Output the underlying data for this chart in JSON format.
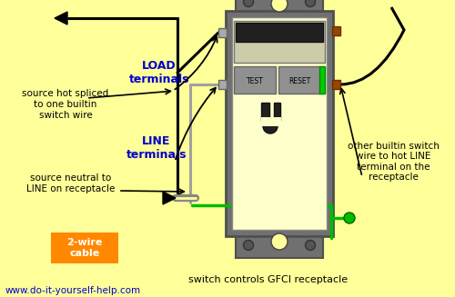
{
  "bg_color": "#FFFF99",
  "website": "www.do-it-yourself-help.com",
  "outlet_body_color": "#FFFFCC",
  "outlet_frame_color": "#707070",
  "outlet_frame_dark": "#505050",
  "switch_dark_color": "#202020",
  "test_reset_color": "#909090",
  "green_indicator": "#00CC00",
  "brown_terminal": "#994400",
  "black_wire_color": "#000000",
  "white_wire_color": "#A0A0A0",
  "green_wire_color": "#00BB00",
  "cable_label_bg": "#FF8800",
  "label_color": "#0000CC",
  "text_color": "#000000",
  "load_label": "LOAD\nterminals",
  "line_label": "LINE\nterminals",
  "source_hot_text": "source hot spliced\nto one builtin\nswitch wire",
  "source_neutral_text": "source neutral to\nLINE on receptacle",
  "other_switch_text": "other builtin switch\nwire to hot LINE\nterminal on the\nreceptacle",
  "switch_controls_text": "switch controls GFCI receptacle",
  "cable_text": "2-wire\ncable"
}
